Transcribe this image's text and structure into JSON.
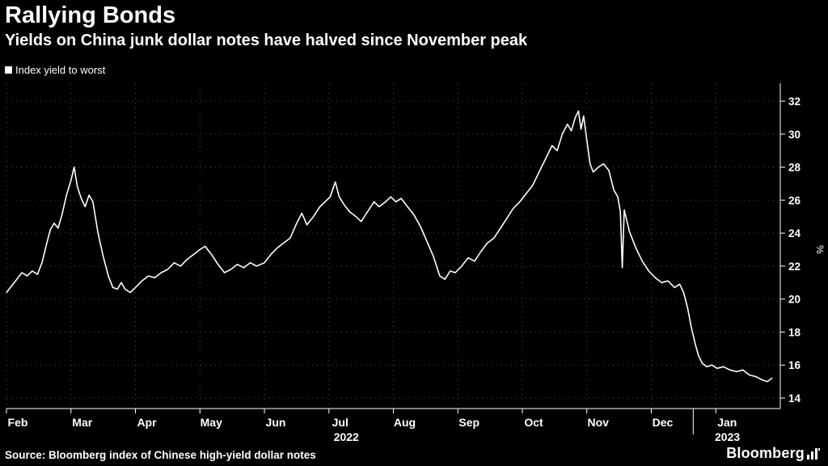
{
  "header": {
    "title": "Rallying Bonds",
    "subtitle": "Yields on China junk dollar notes have halved since November peak"
  },
  "legend": {
    "label": "Index yield to worst"
  },
  "source": {
    "text": "Source: Bloomberg index of Chinese high-yield dollar notes"
  },
  "branding": {
    "logo_text": "Bloomberg"
  },
  "chart_data": {
    "type": "line",
    "title": "Rallying Bonds",
    "subtitle": "Yields on China junk dollar notes have halved since November peak",
    "ylabel": "%",
    "xlabel": "",
    "grid": "dotted",
    "legend_position": "top-left",
    "x_unit": "months since 2022-02-01",
    "ylim": [
      13.4,
      33.1
    ],
    "y_ticks": [
      14,
      16,
      18,
      20,
      22,
      24,
      26,
      28,
      30,
      32
    ],
    "x_ticks": [
      {
        "m": 0,
        "label": "Feb"
      },
      {
        "m": 1,
        "label": "Mar"
      },
      {
        "m": 2,
        "label": "Apr"
      },
      {
        "m": 3,
        "label": "May"
      },
      {
        "m": 4,
        "label": "Jun"
      },
      {
        "m": 5,
        "label": "Jul"
      },
      {
        "m": 6,
        "label": "Aug"
      },
      {
        "m": 7,
        "label": "Sep"
      },
      {
        "m": 8,
        "label": "Oct"
      },
      {
        "m": 9,
        "label": "Nov"
      },
      {
        "m": 10,
        "label": "Dec"
      },
      {
        "m": 11,
        "label": "Jan"
      }
    ],
    "year_labels": [
      {
        "m": 5.27,
        "label": "2022"
      },
      {
        "m": 11.18,
        "label": "2023"
      }
    ],
    "year_divider_m": 10.65,
    "series": [
      {
        "name": "Index yield to worst",
        "color": "#ffffff",
        "points": [
          [
            0.0,
            20.4
          ],
          [
            0.08,
            20.8
          ],
          [
            0.16,
            21.2
          ],
          [
            0.24,
            21.6
          ],
          [
            0.32,
            21.4
          ],
          [
            0.4,
            21.7
          ],
          [
            0.48,
            21.5
          ],
          [
            0.55,
            22.2
          ],
          [
            0.62,
            23.3
          ],
          [
            0.68,
            24.2
          ],
          [
            0.74,
            24.6
          ],
          [
            0.8,
            24.3
          ],
          [
            0.86,
            25.1
          ],
          [
            0.93,
            26.3
          ],
          [
            1.0,
            27.2
          ],
          [
            1.05,
            28.0
          ],
          [
            1.1,
            26.8
          ],
          [
            1.16,
            26.1
          ],
          [
            1.22,
            25.6
          ],
          [
            1.28,
            26.3
          ],
          [
            1.34,
            25.9
          ],
          [
            1.42,
            24.0
          ],
          [
            1.5,
            22.6
          ],
          [
            1.58,
            21.4
          ],
          [
            1.65,
            20.7
          ],
          [
            1.72,
            20.6
          ],
          [
            1.78,
            21.0
          ],
          [
            1.84,
            20.6
          ],
          [
            1.92,
            20.4
          ],
          [
            2.0,
            20.7
          ],
          [
            2.1,
            21.1
          ],
          [
            2.2,
            21.4
          ],
          [
            2.3,
            21.3
          ],
          [
            2.4,
            21.6
          ],
          [
            2.5,
            21.8
          ],
          [
            2.6,
            22.2
          ],
          [
            2.7,
            22.0
          ],
          [
            2.8,
            22.4
          ],
          [
            2.9,
            22.7
          ],
          [
            3.0,
            23.0
          ],
          [
            3.08,
            23.2
          ],
          [
            3.18,
            22.7
          ],
          [
            3.28,
            22.1
          ],
          [
            3.38,
            21.6
          ],
          [
            3.48,
            21.8
          ],
          [
            3.58,
            22.1
          ],
          [
            3.68,
            21.9
          ],
          [
            3.78,
            22.2
          ],
          [
            3.88,
            22.0
          ],
          [
            4.0,
            22.2
          ],
          [
            4.1,
            22.7
          ],
          [
            4.2,
            23.1
          ],
          [
            4.3,
            23.4
          ],
          [
            4.4,
            23.7
          ],
          [
            4.5,
            24.6
          ],
          [
            4.58,
            25.2
          ],
          [
            4.66,
            24.5
          ],
          [
            4.76,
            25.0
          ],
          [
            4.86,
            25.6
          ],
          [
            4.94,
            25.9
          ],
          [
            5.02,
            26.2
          ],
          [
            5.1,
            27.1
          ],
          [
            5.16,
            26.2
          ],
          [
            5.24,
            25.7
          ],
          [
            5.32,
            25.3
          ],
          [
            5.42,
            25.0
          ],
          [
            5.5,
            24.7
          ],
          [
            5.6,
            25.3
          ],
          [
            5.7,
            25.9
          ],
          [
            5.78,
            25.6
          ],
          [
            5.88,
            25.9
          ],
          [
            5.96,
            26.2
          ],
          [
            6.04,
            25.9
          ],
          [
            6.12,
            26.1
          ],
          [
            6.22,
            25.6
          ],
          [
            6.32,
            25.1
          ],
          [
            6.42,
            24.4
          ],
          [
            6.52,
            23.5
          ],
          [
            6.62,
            22.6
          ],
          [
            6.72,
            21.4
          ],
          [
            6.8,
            21.2
          ],
          [
            6.88,
            21.7
          ],
          [
            6.96,
            21.6
          ],
          [
            7.06,
            22.0
          ],
          [
            7.16,
            22.5
          ],
          [
            7.26,
            22.3
          ],
          [
            7.36,
            22.9
          ],
          [
            7.46,
            23.4
          ],
          [
            7.56,
            23.7
          ],
          [
            7.66,
            24.3
          ],
          [
            7.76,
            24.9
          ],
          [
            7.86,
            25.5
          ],
          [
            7.96,
            25.9
          ],
          [
            8.06,
            26.4
          ],
          [
            8.16,
            26.9
          ],
          [
            8.26,
            27.7
          ],
          [
            8.36,
            28.5
          ],
          [
            8.46,
            29.3
          ],
          [
            8.54,
            29.0
          ],
          [
            8.62,
            30.0
          ],
          [
            8.7,
            30.6
          ],
          [
            8.76,
            30.2
          ],
          [
            8.82,
            31.0
          ],
          [
            8.87,
            31.4
          ],
          [
            8.91,
            30.3
          ],
          [
            8.95,
            31.1
          ],
          [
            9.0,
            29.6
          ],
          [
            9.05,
            28.2
          ],
          [
            9.1,
            27.7
          ],
          [
            9.18,
            28.0
          ],
          [
            9.26,
            28.2
          ],
          [
            9.34,
            27.8
          ],
          [
            9.42,
            26.6
          ],
          [
            9.48,
            26.2
          ],
          [
            9.52,
            25.3
          ],
          [
            9.55,
            21.9
          ],
          [
            9.58,
            25.4
          ],
          [
            9.66,
            24.1
          ],
          [
            9.76,
            23.1
          ],
          [
            9.86,
            22.3
          ],
          [
            9.96,
            21.7
          ],
          [
            10.06,
            21.3
          ],
          [
            10.16,
            21.0
          ],
          [
            10.26,
            21.1
          ],
          [
            10.36,
            20.7
          ],
          [
            10.44,
            20.9
          ],
          [
            10.5,
            20.4
          ],
          [
            10.56,
            19.5
          ],
          [
            10.62,
            18.3
          ],
          [
            10.68,
            17.3
          ],
          [
            10.73,
            16.6
          ],
          [
            10.79,
            16.1
          ],
          [
            10.86,
            15.9
          ],
          [
            10.94,
            16.0
          ],
          [
            11.02,
            15.8
          ],
          [
            11.12,
            15.9
          ],
          [
            11.22,
            15.7
          ],
          [
            11.32,
            15.6
          ],
          [
            11.42,
            15.7
          ],
          [
            11.52,
            15.4
          ],
          [
            11.62,
            15.3
          ],
          [
            11.72,
            15.1
          ],
          [
            11.8,
            15.0
          ],
          [
            11.87,
            15.2
          ]
        ]
      }
    ],
    "colors": {
      "background": "#000000",
      "line": "#ffffff",
      "grid": "#4a4a4a",
      "axis": "#ffffff",
      "text": "#ffffff"
    }
  }
}
